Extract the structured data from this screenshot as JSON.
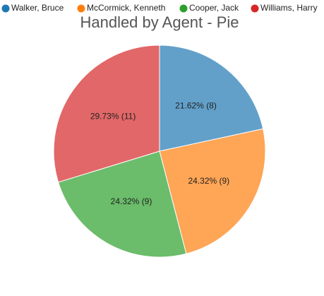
{
  "chart_data": {
    "type": "pie",
    "title": "Handled by Agent - Pie",
    "categories": [
      "Walker, Bruce",
      "McCormick, Kenneth",
      "Cooper, Jack",
      "Williams, Harry"
    ],
    "values": [
      8,
      9,
      9,
      11
    ],
    "value_labels": [
      "21.62% (8)",
      "24.32% (9)",
      "24.32% (9)",
      "29.73% (11)"
    ],
    "colors": [
      "#1f77b4",
      "#ff7f0e",
      "#2ca02c",
      "#d62728"
    ]
  }
}
